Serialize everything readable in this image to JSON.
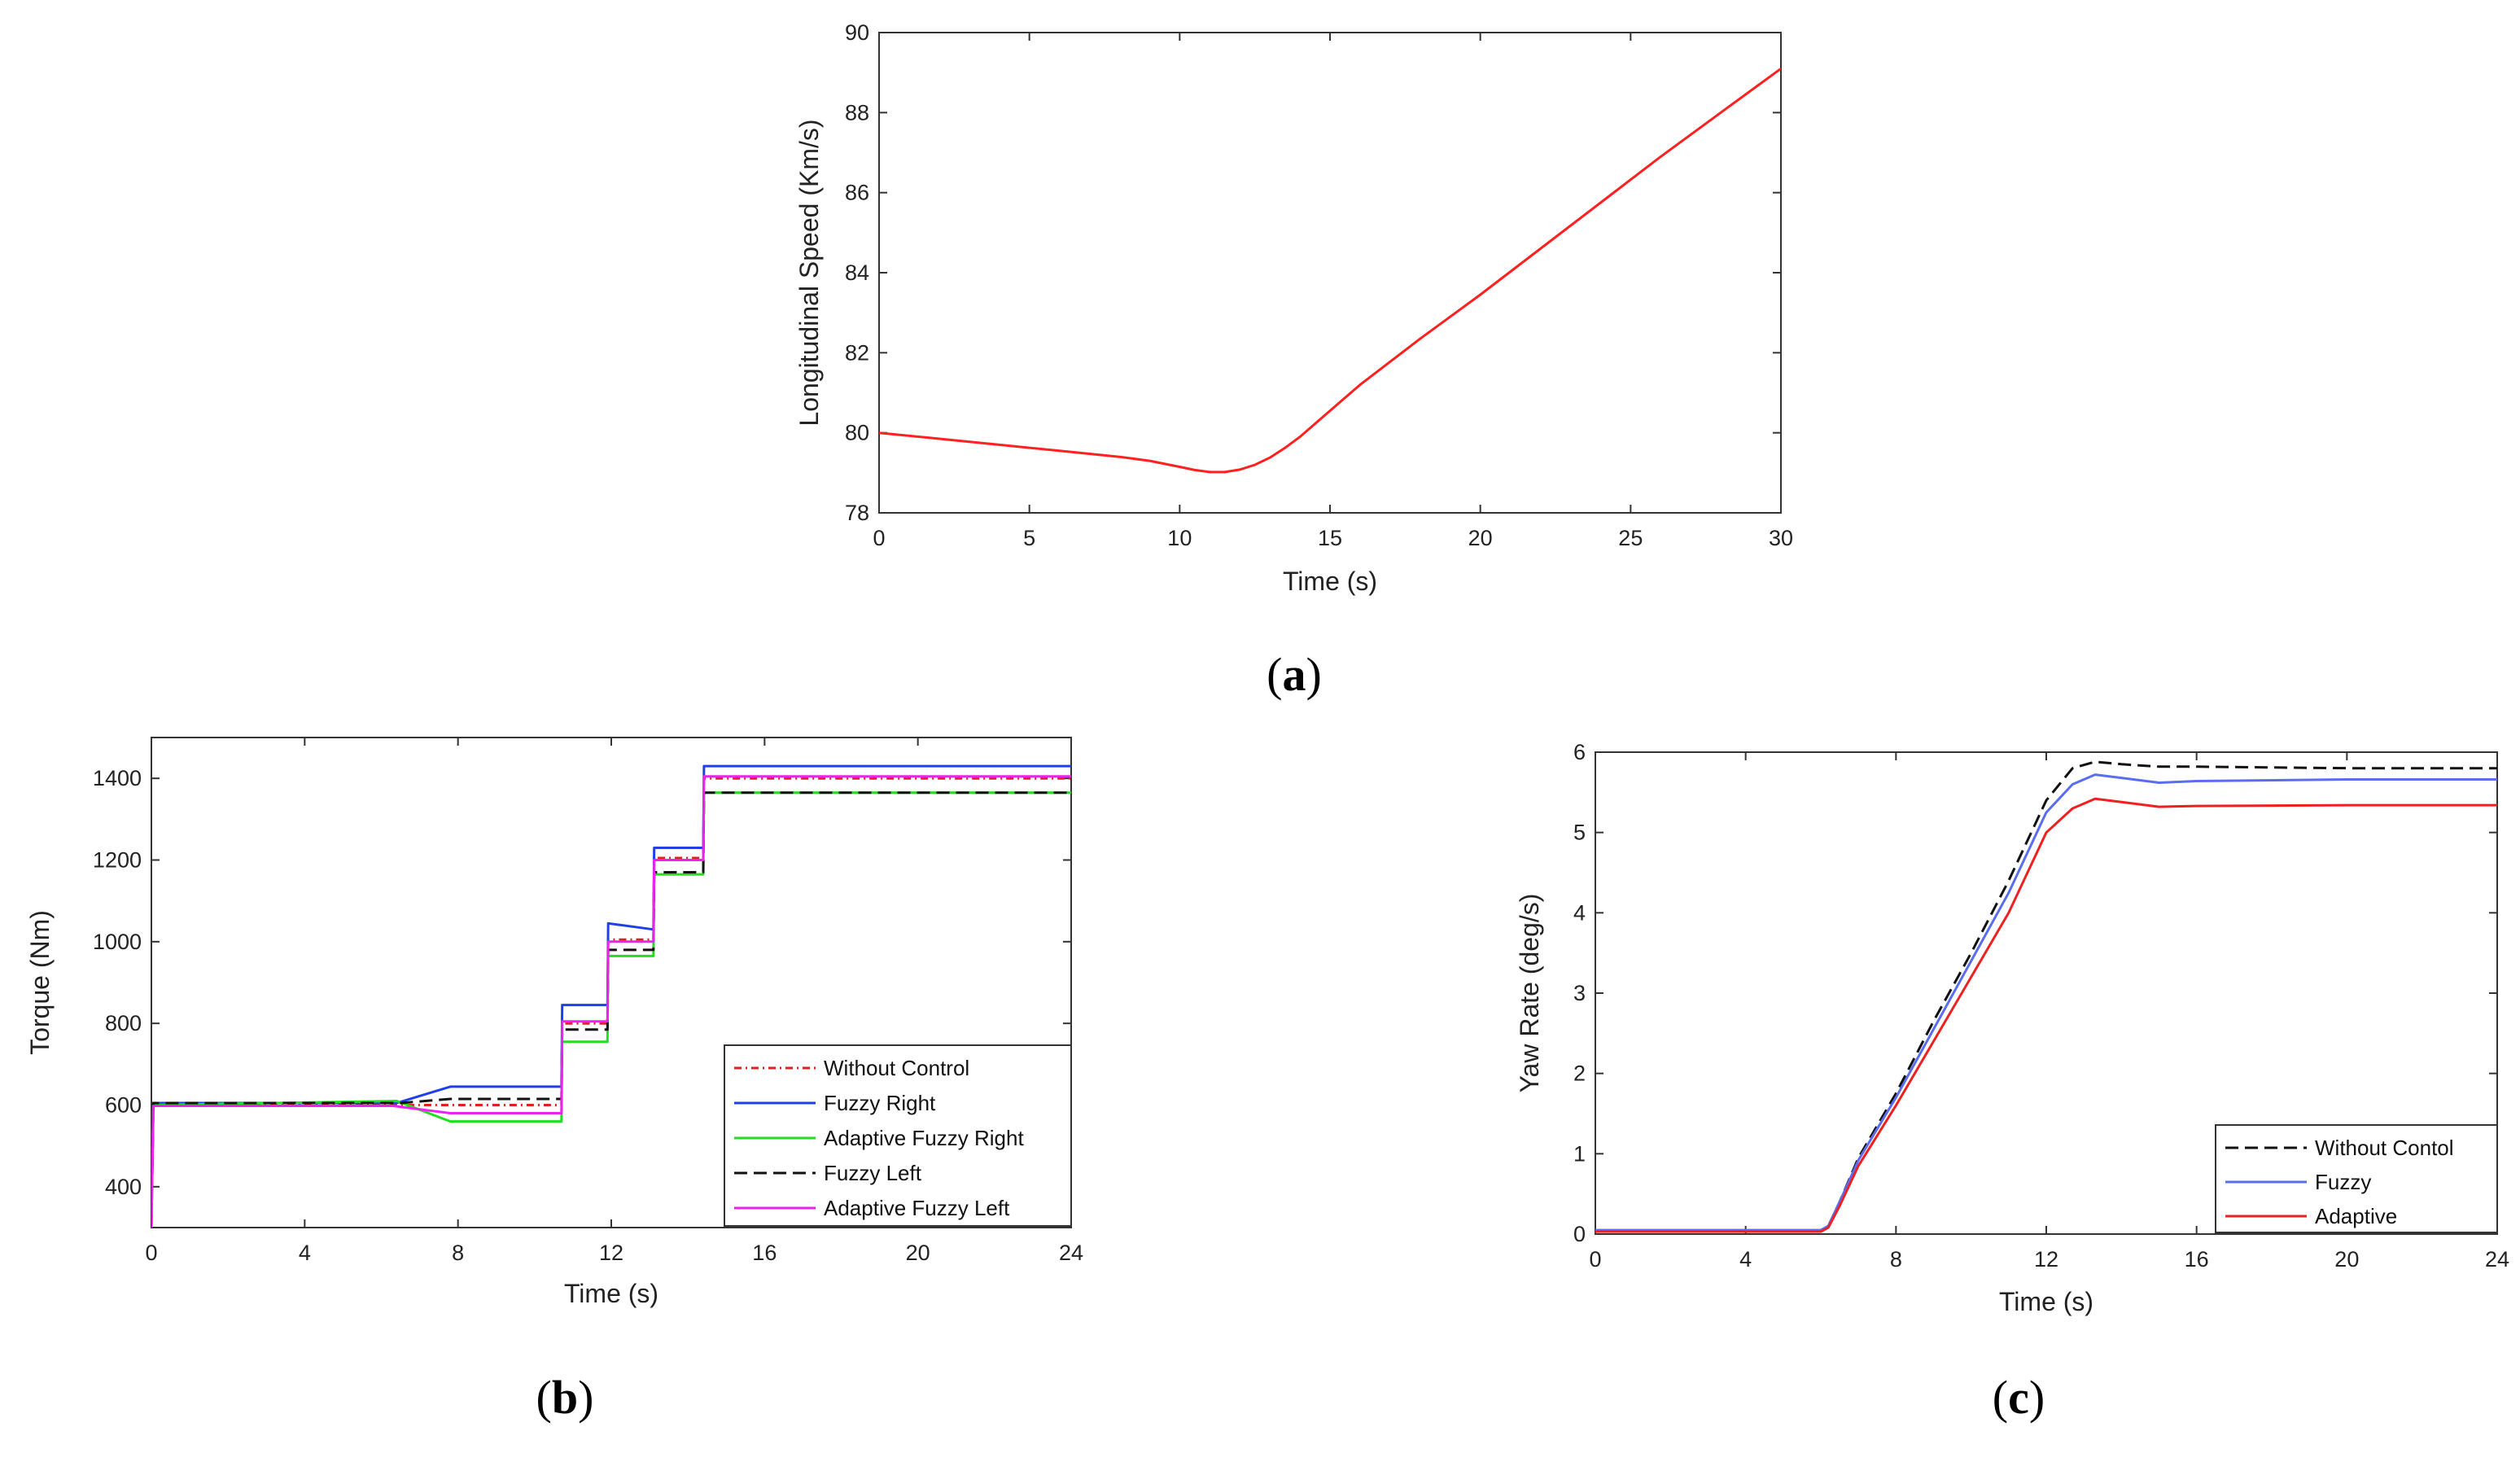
{
  "captions": {
    "a": "a",
    "b": "b",
    "c": "c"
  },
  "chart_data": [
    {
      "id": "a",
      "type": "line",
      "title": "",
      "xlabel": "Time (s)",
      "ylabel": "Longitudinal Speed (Km/s)",
      "xlim": [
        0,
        30
      ],
      "ylim": [
        78,
        90
      ],
      "xticks": [
        0,
        5,
        10,
        15,
        20,
        25,
        30
      ],
      "yticks": [
        78,
        80,
        82,
        84,
        86,
        88,
        90
      ],
      "grid": false,
      "legend": null,
      "series": [
        {
          "name": "Longitudinal Speed",
          "color": "#ff2020",
          "dash": "",
          "x": [
            0,
            2,
            4,
            6,
            8,
            9,
            10,
            10.5,
            11,
            11.5,
            12,
            12.5,
            13,
            13.5,
            14,
            15,
            16,
            18,
            20,
            22,
            24,
            26,
            28,
            30
          ],
          "y": [
            80,
            79.85,
            79.7,
            79.55,
            79.4,
            79.3,
            79.15,
            79.07,
            79.02,
            79.02,
            79.08,
            79.2,
            79.38,
            79.62,
            79.9,
            80.55,
            81.2,
            82.35,
            83.45,
            84.6,
            85.75,
            86.9,
            88.0,
            89.1
          ]
        }
      ]
    },
    {
      "id": "b",
      "type": "line",
      "title": "",
      "xlabel": "Time (s)",
      "ylabel": "Torque (Nm)",
      "xlim": [
        0,
        24
      ],
      "ylim": [
        300,
        1500
      ],
      "xticks": [
        0,
        4,
        8,
        12,
        16,
        20,
        24
      ],
      "yticks": [
        400,
        600,
        800,
        1000,
        1200,
        1400
      ],
      "grid": false,
      "legend": "bottom-right",
      "series": [
        {
          "name": "Without Control",
          "color": "#e02020",
          "dash": "9 5 2 5",
          "x": [
            0,
            0.05,
            6.2,
            7.8,
            10.7,
            10.72,
            11.9,
            11.92,
            13.1,
            13.12,
            14.4,
            14.42,
            24
          ],
          "y": [
            300,
            600,
            600,
            600,
            600,
            800,
            800,
            1005,
            1005,
            1205,
            1205,
            1400,
            1400
          ]
        },
        {
          "name": "Fuzzy Right",
          "color": "#1f3fe8",
          "dash": "",
          "x": [
            0,
            0.05,
            6.4,
            7.8,
            10.7,
            10.72,
            11.9,
            11.92,
            13.1,
            13.12,
            14.4,
            14.42,
            24
          ],
          "y": [
            300,
            605,
            605,
            645,
            645,
            845,
            845,
            1045,
            1030,
            1230,
            1230,
            1430,
            1430
          ]
        },
        {
          "name": "Adaptive Fuzzy Right",
          "color": "#22dd22",
          "dash": "",
          "x": [
            0,
            0.05,
            6.4,
            7.8,
            10.7,
            10.72,
            11.9,
            11.92,
            13.1,
            13.12,
            14.4,
            14.42,
            24
          ],
          "y": [
            300,
            600,
            610,
            560,
            560,
            755,
            755,
            965,
            965,
            1165,
            1165,
            1365,
            1365
          ]
        },
        {
          "name": "Fuzzy Left",
          "color": "#111111",
          "dash": "16 8",
          "x": [
            0,
            0.05,
            6.5,
            7.8,
            10.7,
            10.72,
            11.9,
            11.92,
            13.1,
            13.12,
            14.4,
            14.42,
            24
          ],
          "y": [
            300,
            605,
            605,
            615,
            615,
            785,
            785,
            980,
            980,
            1170,
            1170,
            1365,
            1365
          ]
        },
        {
          "name": "Adaptive Fuzzy Left",
          "color": "#ee22ee",
          "dash": "",
          "x": [
            0,
            0.05,
            6.3,
            7.8,
            10.7,
            10.72,
            11.9,
            11.92,
            13.1,
            13.12,
            14.4,
            14.42,
            24
          ],
          "y": [
            300,
            598,
            598,
            580,
            580,
            805,
            805,
            1000,
            1000,
            1200,
            1200,
            1405,
            1405
          ]
        }
      ]
    },
    {
      "id": "c",
      "type": "line",
      "title": "",
      "xlabel": "Time (s)",
      "ylabel": "Yaw Rate (deg/s)",
      "xlim": [
        0,
        24
      ],
      "ylim": [
        0,
        6
      ],
      "xticks": [
        0,
        4,
        8,
        12,
        16,
        20,
        24
      ],
      "yticks": [
        0,
        1,
        2,
        3,
        4,
        5,
        6
      ],
      "grid": false,
      "legend": "bottom-right",
      "series": [
        {
          "name": "Without Contol",
          "color": "#111111",
          "dash": "16 8",
          "x": [
            0,
            6,
            6.2,
            6.5,
            7,
            8,
            9,
            10,
            11,
            12,
            12.7,
            13.3,
            14,
            15,
            16,
            20,
            24
          ],
          "y": [
            0.04,
            0.04,
            0.1,
            0.4,
            0.95,
            1.75,
            2.65,
            3.5,
            4.4,
            5.4,
            5.8,
            5.88,
            5.85,
            5.82,
            5.82,
            5.8,
            5.8
          ]
        },
        {
          "name": "Fuzzy",
          "color": "#5a6cf0",
          "dash": "",
          "x": [
            0,
            6,
            6.2,
            6.5,
            7,
            8,
            9,
            10,
            11,
            12,
            12.7,
            13.3,
            14,
            15,
            16,
            20,
            24
          ],
          "y": [
            0.05,
            0.05,
            0.1,
            0.4,
            0.92,
            1.7,
            2.55,
            3.4,
            4.25,
            5.25,
            5.6,
            5.72,
            5.68,
            5.62,
            5.64,
            5.66,
            5.66
          ]
        },
        {
          "name": "Adaptive",
          "color": "#ee2020",
          "dash": "",
          "x": [
            0,
            6,
            6.2,
            6.5,
            7,
            8,
            9,
            10,
            11,
            12,
            12.7,
            13.3,
            14,
            15,
            16,
            20,
            24
          ],
          "y": [
            0.03,
            0.03,
            0.08,
            0.35,
            0.85,
            1.6,
            2.4,
            3.2,
            4.0,
            5.0,
            5.3,
            5.42,
            5.38,
            5.32,
            5.33,
            5.34,
            5.34
          ]
        }
      ]
    }
  ]
}
